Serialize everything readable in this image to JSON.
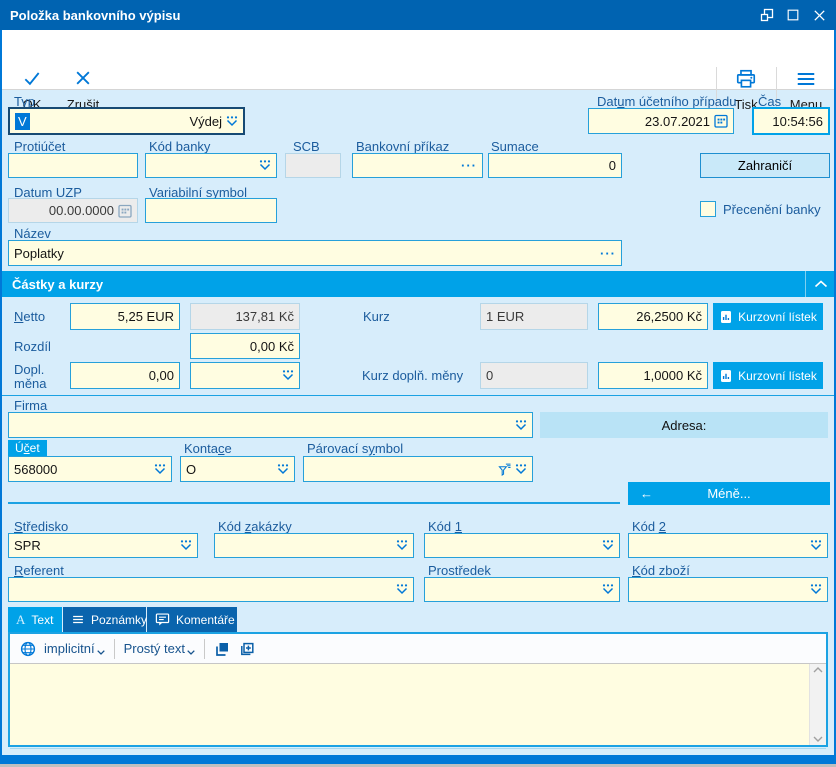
{
  "window": {
    "title": "Položka bankovního výpisu"
  },
  "toolbar": {
    "ok": "OK",
    "cancel": "Zrušit",
    "print": "Tisk",
    "menu": "Menu"
  },
  "icons": {
    "ellipsis": "···",
    "back_arrow": "←",
    "text_tab": "A",
    "dropdown": "triple-dot-chevron",
    "calendar": "calendar-grid",
    "filter": "funnel"
  },
  "header_fields": {
    "typ": {
      "label": {
        "text": "Typ",
        "u": 0
      },
      "code": "V",
      "value": "Výdej"
    },
    "datum": {
      "label": {
        "text": "Datum účetního případu",
        "u": 3
      },
      "value": "23.07.2021"
    },
    "cas": {
      "label": {
        "text": "Čas"
      },
      "value": "10:54:56"
    }
  },
  "bank_fields": {
    "protiucet": {
      "label": {
        "text": "Protiúčet"
      },
      "value": ""
    },
    "kod_banky": {
      "label": {
        "text": "Kód banky"
      },
      "value": ""
    },
    "scb": {
      "label": {
        "text": "SCB"
      },
      "value": ""
    },
    "bankovni_prikaz": {
      "label": {
        "text": "Bankovní příkaz"
      },
      "value": ""
    },
    "sumace": {
      "label": {
        "text": "Sumace"
      },
      "value": "0"
    },
    "zahranici": "Zahraničí",
    "datum_uzp": {
      "label": {
        "text": "Datum UZP"
      },
      "value": "00.00.0000"
    },
    "var_symbol": {
      "label": {
        "text": "Variabilní symbol",
        "u": 0
      },
      "value": ""
    },
    "preceneni": {
      "label": {
        "text": "Přecenění banky"
      },
      "checked": false
    },
    "nazev": {
      "label": {
        "text": "Název"
      },
      "value": "Poplatky"
    }
  },
  "amounts": {
    "section_title": "Částky a kurzy",
    "netto": {
      "label": {
        "text": "Netto",
        "u": 0
      },
      "foreign": "5,25 EUR",
      "local": "137,81 Kč"
    },
    "kurz": {
      "label": {
        "text": "Kurz"
      },
      "base": "1 EUR",
      "rate": "26,2500 Kč"
    },
    "kurzovni_listek": "Kurzovní lístek",
    "rozdil": {
      "label": {
        "text": "Rozdíl"
      },
      "value": "0,00 Kč"
    },
    "dopl_mena": {
      "label": {
        "text": "Dopl. měna"
      },
      "amount": "0,00",
      "currency": ""
    },
    "kurz_dopl": {
      "label": {
        "text": "Kurz doplň. měny"
      },
      "base": "0",
      "rate": "1,0000 Kč"
    }
  },
  "firma": {
    "label": {
      "text": "Firma"
    },
    "value": "",
    "adresa_label": "Adresa:"
  },
  "account": {
    "ucet": {
      "label": {
        "text": "Účet",
        "u": 1
      },
      "value": "568000"
    },
    "kontace": {
      "label": {
        "text": "Kontace",
        "u": 5
      },
      "value": "O"
    },
    "parovaci": {
      "label": {
        "text": "Párovací symbol",
        "u": 10
      },
      "value": ""
    }
  },
  "mene_button": "Méně...",
  "codes": {
    "stredisko": {
      "label": {
        "text": "Středisko",
        "u": 0
      },
      "value": "SPR"
    },
    "kod_zakazky": {
      "label": {
        "text": "Kód zakázky",
        "u": 4
      },
      "value": ""
    },
    "kod1": {
      "label": {
        "text": "Kód 1",
        "u": 4
      },
      "value": ""
    },
    "kod2": {
      "label": {
        "text": "Kód 2",
        "u": 4
      },
      "value": ""
    },
    "referent": {
      "label": {
        "text": "Referent",
        "u": 0
      },
      "value": ""
    },
    "prostredek": {
      "label": {
        "text": "Prostředek"
      },
      "value": ""
    },
    "kod_zbozi": {
      "label": {
        "text": "Kód zboží",
        "u": 0
      },
      "value": ""
    }
  },
  "tabs": [
    {
      "label": "Text",
      "active": true
    },
    {
      "label": "Poznámky",
      "active": false
    },
    {
      "label": "Komentáře",
      "active": false
    }
  ],
  "text_editor": {
    "language": "implicitní",
    "format": "Prostý text",
    "content": ""
  },
  "colors": {
    "accent": "#00A2E8",
    "titlebar": "#0063B1",
    "window_bg": "#D7EDFB",
    "field_bg": "#FFFDE1",
    "field_border": "#26A0DA",
    "disabled_bg": "#ECECEC",
    "dark_tab": "#0A64AD",
    "bottom_bar": "#0078D7",
    "label_text": "#1B5C9D"
  }
}
